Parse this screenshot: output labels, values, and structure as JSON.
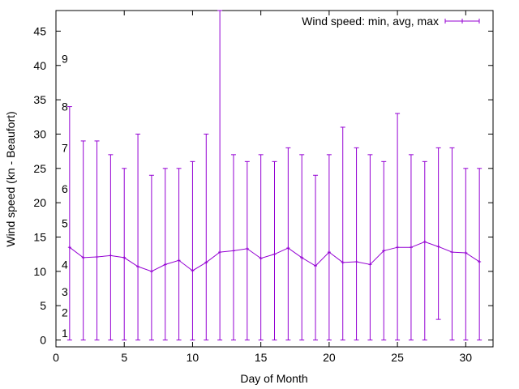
{
  "chart_data": {
    "type": "line",
    "title": "",
    "xlabel": "Day of Month",
    "ylabel": "Wind speed (kn - Beaufort)",
    "xlim": [
      0,
      32
    ],
    "ylim": [
      -1,
      48
    ],
    "x_ticks": [
      0,
      5,
      10,
      15,
      20,
      25,
      30
    ],
    "y_ticks": [
      0,
      5,
      10,
      15,
      20,
      25,
      30,
      35,
      40,
      45
    ],
    "grid": false,
    "legend_position": "top-right",
    "beaufort_scale": [
      {
        "label": "1",
        "y": 1
      },
      {
        "label": "2",
        "y": 4
      },
      {
        "label": "3",
        "y": 7
      },
      {
        "label": "4",
        "y": 11
      },
      {
        "label": "5",
        "y": 17
      },
      {
        "label": "6",
        "y": 22
      },
      {
        "label": "7",
        "y": 28
      },
      {
        "label": "8",
        "y": 34
      },
      {
        "label": "9",
        "y": 41
      }
    ],
    "series": [
      {
        "name": "Wind speed: min, avg, max",
        "color": "#9400d3",
        "x": [
          1,
          2,
          3,
          4,
          5,
          6,
          7,
          8,
          9,
          10,
          11,
          12,
          13,
          14,
          15,
          16,
          17,
          18,
          19,
          20,
          21,
          22,
          23,
          24,
          25,
          26,
          27,
          28,
          29,
          30,
          31
        ],
        "avg": [
          13.5,
          12.0,
          12.1,
          12.3,
          12.0,
          10.7,
          10.0,
          11.0,
          11.6,
          10.1,
          11.3,
          12.8,
          13.0,
          13.3,
          11.9,
          12.5,
          13.4,
          12.0,
          10.8,
          12.8,
          11.3,
          11.4,
          11.0,
          13.0,
          13.5,
          13.5,
          14.3,
          13.6,
          12.8,
          12.7,
          11.4
        ],
        "min": [
          0,
          0,
          0,
          0,
          0,
          0,
          0,
          0,
          0,
          0,
          0,
          0,
          0,
          0,
          0,
          0,
          0,
          0,
          0,
          0,
          0,
          0,
          0,
          0,
          0,
          0,
          0,
          3,
          0,
          0,
          0
        ],
        "max": [
          34,
          29,
          29,
          27,
          25,
          30,
          24,
          25,
          25,
          26,
          30,
          48,
          27,
          26,
          27,
          26,
          28,
          27,
          24,
          27,
          31,
          28,
          27,
          26,
          33,
          27,
          26,
          28,
          28,
          25,
          25
        ]
      }
    ]
  }
}
